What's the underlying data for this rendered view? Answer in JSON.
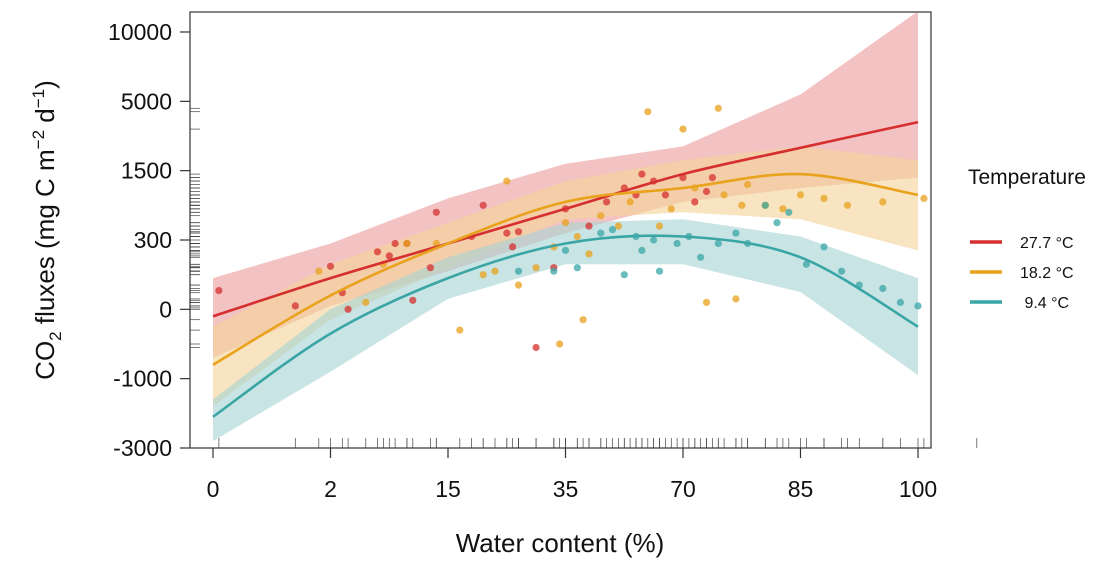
{
  "chart_data": {
    "type": "scatter",
    "title": "",
    "xlabel": "Water content (%)",
    "ylabel_main": "CO",
    "ylabel_sub": "2",
    "ylabel_rest": " fluxes (mg C m",
    "ylabel_sup1": "−2",
    "ylabel_mid": " d",
    "ylabel_sup2": "−1",
    "ylabel_end": ")",
    "x_ticks": [
      "0",
      "2",
      "15",
      "35",
      "70",
      "85",
      "100"
    ],
    "y_ticks": [
      "10000",
      "5000",
      "1500",
      "300",
      "0",
      "-1000",
      "-3000"
    ],
    "x_tick_index_range": [
      0,
      6
    ],
    "y_tick_index_range": [
      0,
      6
    ],
    "legend": {
      "title": "Temperature",
      "placement": "right",
      "entries": [
        "27.7 °C",
        "18.2 °C",
        " 9.4 °C"
      ]
    },
    "grid": false,
    "series": [
      {
        "name": "27.7 °C",
        "color": "#d62f2f",
        "band_color": "#ec9c9c",
        "curve": [
          [
            0.0,
            -0.1
          ],
          [
            1.0,
            0.45
          ],
          [
            2.0,
            0.95
          ],
          [
            3.0,
            1.45
          ],
          [
            4.0,
            1.95
          ],
          [
            5.0,
            2.33
          ],
          [
            6.0,
            2.7
          ]
        ],
        "band_upper": [
          [
            0.0,
            0.45
          ],
          [
            1.0,
            0.95
          ],
          [
            2.0,
            1.6
          ],
          [
            3.0,
            2.1
          ],
          [
            4.0,
            2.35
          ],
          [
            5.0,
            3.1
          ],
          [
            6.0,
            4.3
          ]
        ],
        "band_lower": [
          [
            0.0,
            -0.7
          ],
          [
            1.0,
            0.05
          ],
          [
            2.0,
            0.55
          ],
          [
            3.0,
            1.1
          ],
          [
            4.0,
            1.55
          ],
          [
            5.0,
            1.75
          ],
          [
            6.0,
            1.9
          ]
        ],
        "points": [
          [
            0.05,
            0.27
          ],
          [
            0.7,
            0.05
          ],
          [
            1.0,
            0.62
          ],
          [
            1.1,
            0.24
          ],
          [
            1.15,
            0.0
          ],
          [
            1.4,
            0.83
          ],
          [
            1.5,
            0.77
          ],
          [
            1.55,
            0.95
          ],
          [
            1.65,
            0.95
          ],
          [
            1.7,
            0.13
          ],
          [
            1.85,
            0.6
          ],
          [
            1.9,
            1.4
          ],
          [
            2.2,
            1.05
          ],
          [
            2.3,
            1.5
          ],
          [
            2.5,
            1.1
          ],
          [
            2.55,
            0.9
          ],
          [
            2.6,
            1.12
          ],
          [
            2.75,
            -0.55
          ],
          [
            2.9,
            0.6
          ],
          [
            3.0,
            1.45
          ],
          [
            3.2,
            1.2
          ],
          [
            3.35,
            1.55
          ],
          [
            3.5,
            1.75
          ],
          [
            3.6,
            1.65
          ],
          [
            3.65,
            1.95
          ],
          [
            3.75,
            1.85
          ],
          [
            3.85,
            1.65
          ],
          [
            4.0,
            1.9
          ],
          [
            4.1,
            1.55
          ],
          [
            4.2,
            1.7
          ],
          [
            4.25,
            1.9
          ]
        ]
      },
      {
        "name": "18.2 °C",
        "color": "#e8a21c",
        "band_color": "#f3d49a",
        "curve": [
          [
            0.0,
            -0.8
          ],
          [
            1.0,
            0.2
          ],
          [
            2.0,
            0.95
          ],
          [
            3.0,
            1.55
          ],
          [
            4.0,
            1.75
          ],
          [
            5.0,
            1.95
          ],
          [
            6.0,
            1.65
          ]
        ],
        "band_upper": [
          [
            0.0,
            -0.25
          ],
          [
            1.0,
            0.65
          ],
          [
            2.0,
            1.25
          ],
          [
            3.0,
            1.85
          ],
          [
            4.0,
            2.15
          ],
          [
            5.0,
            2.35
          ],
          [
            6.0,
            2.15
          ]
        ],
        "band_lower": [
          [
            0.0,
            -1.4
          ],
          [
            1.0,
            -0.15
          ],
          [
            2.0,
            0.6
          ],
          [
            3.0,
            1.3
          ],
          [
            4.0,
            1.4
          ],
          [
            5.0,
            1.3
          ],
          [
            6.0,
            0.85
          ]
        ],
        "points": [
          [
            0.9,
            0.55
          ],
          [
            1.3,
            0.1
          ],
          [
            1.45,
            0.65
          ],
          [
            1.65,
            0.95
          ],
          [
            1.9,
            0.95
          ],
          [
            2.1,
            -0.3
          ],
          [
            2.3,
            0.5
          ],
          [
            2.4,
            0.55
          ],
          [
            2.5,
            1.85
          ],
          [
            2.6,
            0.35
          ],
          [
            2.75,
            0.6
          ],
          [
            2.9,
            0.9
          ],
          [
            3.0,
            1.25
          ],
          [
            3.1,
            1.05
          ],
          [
            3.2,
            0.8
          ],
          [
            3.3,
            1.35
          ],
          [
            3.45,
            1.2
          ],
          [
            3.55,
            1.55
          ],
          [
            3.7,
            2.85
          ],
          [
            3.8,
            1.2
          ],
          [
            3.9,
            1.45
          ],
          [
            4.0,
            2.6
          ],
          [
            4.1,
            1.75
          ],
          [
            4.2,
            0.1
          ],
          [
            4.35,
            1.65
          ],
          [
            4.5,
            1.5
          ],
          [
            4.55,
            1.8
          ],
          [
            4.7,
            1.5
          ],
          [
            4.85,
            1.45
          ],
          [
            5.0,
            1.65
          ],
          [
            5.2,
            1.6
          ],
          [
            5.4,
            1.5
          ],
          [
            5.7,
            1.55
          ],
          [
            6.05,
            1.6
          ],
          [
            4.3,
            2.9
          ],
          [
            4.45,
            0.15
          ],
          [
            3.15,
            -0.15
          ],
          [
            2.95,
            -0.5
          ]
        ]
      },
      {
        "name": "9.4 °C",
        "color": "#3aa5a5",
        "band_color": "#a8d4d4",
        "curve": [
          [
            0.0,
            -1.55
          ],
          [
            1.0,
            -0.35
          ],
          [
            2.0,
            0.45
          ],
          [
            3.0,
            0.95
          ],
          [
            4.0,
            1.05
          ],
          [
            5.0,
            0.75
          ],
          [
            6.0,
            -0.25
          ]
        ],
        "band_upper": [
          [
            0.0,
            -1.3
          ],
          [
            1.0,
            0.0
          ],
          [
            2.0,
            0.75
          ],
          [
            3.0,
            1.25
          ],
          [
            4.0,
            1.3
          ],
          [
            5.0,
            1.05
          ],
          [
            6.0,
            0.45
          ]
        ],
        "band_lower": [
          [
            0.0,
            -1.9
          ],
          [
            1.0,
            -0.9
          ],
          [
            2.0,
            0.15
          ],
          [
            3.0,
            0.65
          ],
          [
            4.0,
            0.65
          ],
          [
            5.0,
            0.25
          ],
          [
            6.0,
            -0.95
          ]
        ],
        "points": [
          [
            2.6,
            0.55
          ],
          [
            2.9,
            0.55
          ],
          [
            3.0,
            0.85
          ],
          [
            3.1,
            0.6
          ],
          [
            3.3,
            1.1
          ],
          [
            3.4,
            1.15
          ],
          [
            3.5,
            0.5
          ],
          [
            3.6,
            1.05
          ],
          [
            3.65,
            0.85
          ],
          [
            3.75,
            1.0
          ],
          [
            3.8,
            0.55
          ],
          [
            3.95,
            0.95
          ],
          [
            4.05,
            1.05
          ],
          [
            4.15,
            0.75
          ],
          [
            4.3,
            0.95
          ],
          [
            4.45,
            1.1
          ],
          [
            4.55,
            0.95
          ],
          [
            4.7,
            1.5
          ],
          [
            4.8,
            1.25
          ],
          [
            4.9,
            1.4
          ],
          [
            5.05,
            0.65
          ],
          [
            5.2,
            0.9
          ],
          [
            5.35,
            0.55
          ],
          [
            5.5,
            0.35
          ],
          [
            5.7,
            0.3
          ],
          [
            5.85,
            0.1
          ],
          [
            6.0,
            0.05
          ],
          [
            6.5,
            0.02
          ]
        ]
      }
    ]
  }
}
